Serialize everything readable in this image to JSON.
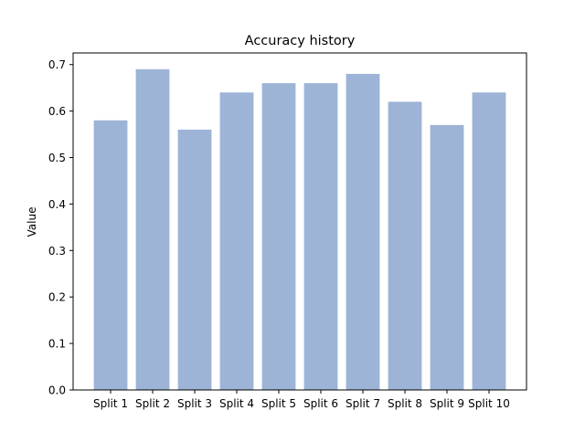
{
  "chart_data": {
    "type": "bar",
    "title": "Accuracy history",
    "xlabel": "",
    "ylabel": "Value",
    "categories": [
      "Split 1",
      "Split 2",
      "Split 3",
      "Split 4",
      "Split 5",
      "Split 6",
      "Split 7",
      "Split 8",
      "Split 9",
      "Split 10"
    ],
    "values": [
      0.58,
      0.69,
      0.56,
      0.64,
      0.66,
      0.66,
      0.68,
      0.62,
      0.57,
      0.64
    ],
    "ylim": [
      0,
      0.725
    ],
    "yticks": [
      "0.0",
      "0.1",
      "0.2",
      "0.3",
      "0.4",
      "0.5",
      "0.6",
      "0.7"
    ],
    "bar_color": "#9db4d7",
    "grid": false,
    "legend": "none"
  }
}
